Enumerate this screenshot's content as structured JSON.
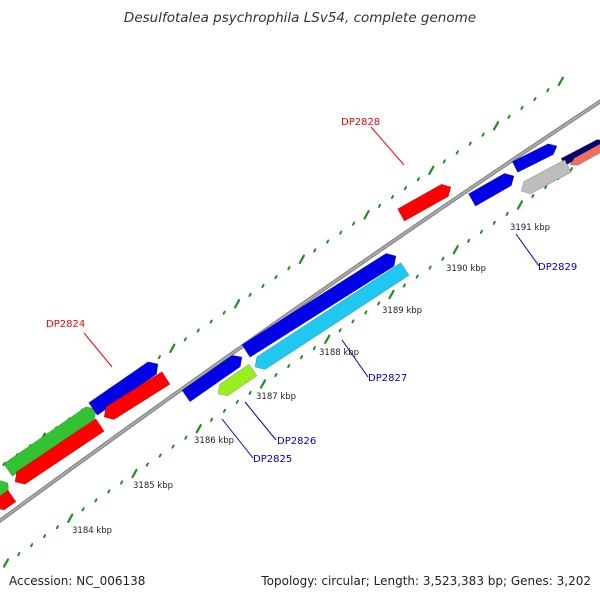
{
  "header": {
    "title": "Desulfotalea psychrophila LSv54, complete genome"
  },
  "footer": {
    "accession": "Accession: NC_006138",
    "summary": "Topology: circular; Length: 3,523,383 bp; Genes: 3,202"
  },
  "colors": {
    "backbone": "#8a8a8a",
    "tick": "#1f8f1f",
    "forward_label": "#ff0000",
    "reverse_label": "#0000cc",
    "blue": "#0000e8",
    "red": "#ff0000",
    "green": "#33c233",
    "cyan": "#1ec8f0",
    "lime": "#99ee22",
    "gray": "#bdbdbd",
    "navy": "#000070",
    "salmon": "#f07060"
  },
  "scale_labels": [
    "3184 kbp",
    "3185 kbp",
    "3186 kbp",
    "3187 kbp",
    "3188 kbp",
    "3189 kbp",
    "3190 kbp",
    "3191 kbp"
  ],
  "gene_labels": [
    {
      "text": "DP2828",
      "strand": "forward"
    },
    {
      "text": "DP2824",
      "strand": "forward"
    },
    {
      "text": "DP2829",
      "strand": "reverse"
    },
    {
      "text": "DP2827",
      "strand": "reverse"
    },
    {
      "text": "DP2826",
      "strand": "reverse"
    },
    {
      "text": "DP2825",
      "strand": "reverse"
    }
  ]
}
